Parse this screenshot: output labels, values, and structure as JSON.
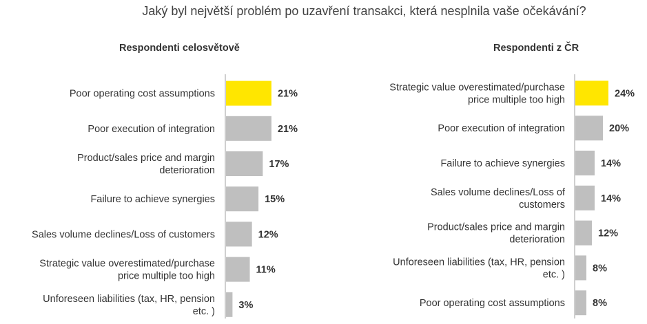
{
  "title": "Jaký byl největší problém po uzavření transakci, která nesplnila vaše očekávání?",
  "colors": {
    "highlight": "#FFE600",
    "bar": "#BFBFBF",
    "axis": "#BFBFBF"
  },
  "chart_data": [
    {
      "type": "bar",
      "orientation": "horizontal",
      "title": "Respondenti celosvětově",
      "categories": [
        "Poor operating cost assumptions",
        "Poor execution of integration",
        "Product/sales price and margin deterioration",
        "Failure to achieve synergies",
        "Sales volume declines/Loss of customers",
        "Strategic value overestimated/purchase price multiple too high",
        "Unforeseen liabilities (tax, HR, pension etc. )"
      ],
      "category_lines": [
        [
          "Poor operating cost assumptions"
        ],
        [
          "Poor execution of integration"
        ],
        [
          "Product/sales price and margin",
          "deterioration"
        ],
        [
          "Failure to achieve synergies"
        ],
        [
          "Sales volume declines/Loss of customers"
        ],
        [
          "Strategic value overestimated/purchase",
          "price multiple too high"
        ],
        [
          "Unforeseen liabilities (tax, HR, pension",
          "etc. )"
        ]
      ],
      "values": [
        21,
        21,
        17,
        15,
        12,
        11,
        3
      ],
      "value_labels": [
        "21%",
        "21%",
        "17%",
        "15%",
        "12%",
        "11%",
        "3%"
      ],
      "highlight_index": 0,
      "unit": "%"
    },
    {
      "type": "bar",
      "orientation": "horizontal",
      "title": "Respondenti z ČR",
      "categories": [
        "Strategic value overestimated/purchase price multiple too high",
        "Poor execution of integration",
        "Failure to achieve synergies",
        "Sales volume declines/Loss of customers",
        "Product/sales price and margin deterioration",
        "Unforeseen liabilities (tax, HR, pension etc. )",
        "Poor operating cost assumptions"
      ],
      "category_lines": [
        [
          "Strategic value overestimated/purchase",
          "price multiple too high"
        ],
        [
          "Poor execution of integration"
        ],
        [
          "Failure to achieve synergies"
        ],
        [
          "Sales volume declines/Loss of",
          "customers"
        ],
        [
          "Product/sales price and margin",
          "deterioration"
        ],
        [
          "Unforeseen liabilities (tax, HR, pension",
          "etc. )"
        ],
        [
          "Poor operating cost assumptions"
        ]
      ],
      "values": [
        24,
        20,
        14,
        14,
        12,
        8,
        8
      ],
      "value_labels": [
        "24%",
        "20%",
        "14%",
        "14%",
        "12%",
        "8%",
        "8%"
      ],
      "highlight_index": 0,
      "unit": "%"
    }
  ]
}
